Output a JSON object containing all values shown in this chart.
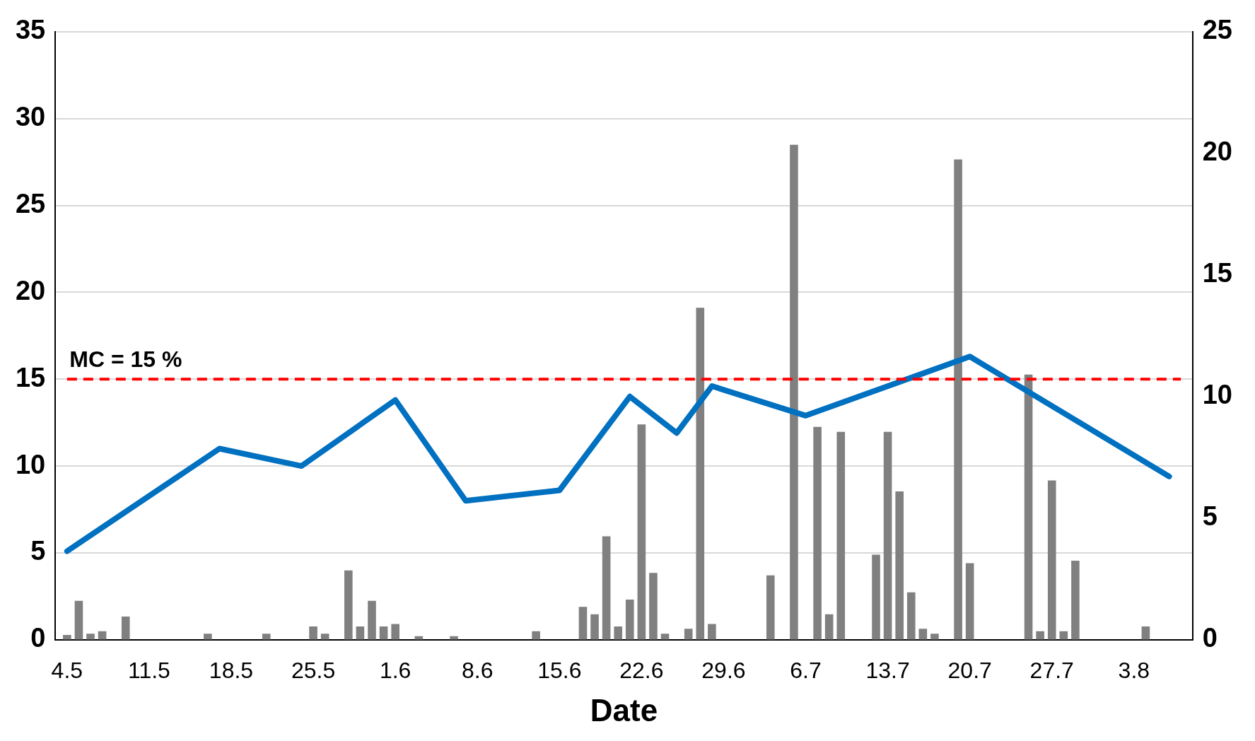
{
  "chart_data": {
    "type": "bar",
    "xlabel": "Date",
    "xlim": [
      "--05-03",
      "--08-08"
    ],
    "xticks": [
      {
        "value": "--05-04",
        "label": "4.5"
      },
      {
        "value": "--05-11",
        "label": "11.5"
      },
      {
        "value": "--05-18",
        "label": "18.5"
      },
      {
        "value": "--05-25",
        "label": "25.5"
      },
      {
        "value": "--06-01",
        "label": "1.6"
      },
      {
        "value": "--06-08",
        "label": "8.6"
      },
      {
        "value": "--06-15",
        "label": "15.6"
      },
      {
        "value": "--06-22",
        "label": "22.6"
      },
      {
        "value": "--06-29",
        "label": "29.6"
      },
      {
        "value": "--07-06",
        "label": "6.7"
      },
      {
        "value": "--07-13",
        "label": "13.7"
      },
      {
        "value": "--07-20",
        "label": "20.7"
      },
      {
        "value": "--07-27",
        "label": "27.7"
      },
      {
        "value": "--08-03",
        "label": "3.8"
      }
    ],
    "ylim": [
      0,
      35
    ],
    "yticks": [
      0,
      5,
      10,
      15,
      20,
      25,
      30,
      35
    ],
    "y2lim": [
      0,
      25
    ],
    "y2ticks": [
      0,
      5,
      10,
      15,
      20,
      25
    ],
    "grid": "y",
    "series": [
      {
        "axis": "y2",
        "color": "#808080",
        "x": [
          "--05-04",
          "--05-05",
          "--05-06",
          "--05-07",
          "--05-09",
          "--05-16",
          "--05-21",
          "--05-25",
          "--05-26",
          "--05-28",
          "--05-29",
          "--05-30",
          "--05-31",
          "--06-01",
          "--06-03",
          "--06-06",
          "--06-13",
          "--06-17",
          "--06-18",
          "--06-19",
          "--06-20",
          "--06-21",
          "--06-22",
          "--06-23",
          "--06-24",
          "--06-26",
          "--06-27",
          "--06-28",
          "--07-03",
          "--07-05",
          "--07-07",
          "--07-08",
          "--07-09",
          "--07-12",
          "--07-13",
          "--07-14",
          "--07-15",
          "--07-16",
          "--07-17",
          "--07-19",
          "--07-20",
          "--07-25",
          "--07-26",
          "--07-27",
          "--07-28",
          "--07-29",
          "--08-04"
        ],
        "values": [
          0.2,
          1.6,
          0.25,
          0.35,
          0.95,
          0.25,
          0.25,
          0.55,
          0.25,
          2.85,
          0.55,
          1.6,
          0.55,
          0.65,
          0.15,
          0.15,
          0.35,
          1.35,
          1.05,
          4.25,
          0.55,
          1.65,
          8.85,
          2.75,
          0.25,
          0.45,
          13.65,
          0.65,
          2.65,
          20.35,
          8.75,
          1.05,
          8.55,
          3.5,
          8.55,
          6.1,
          1.95,
          0.45,
          0.25,
          19.75,
          3.15,
          10.9,
          0.35,
          6.55,
          0.35,
          3.25,
          0.55
        ]
      },
      {
        "type": "line",
        "axis": "y",
        "color": "#0070c0",
        "x": [
          "--05-04",
          "--05-17",
          "--05-24",
          "--06-01",
          "--06-07",
          "--06-15",
          "--06-21",
          "--06-25",
          "--06-28",
          "--07-06",
          "--07-20",
          "--08-06"
        ],
        "values": [
          5.1,
          11.0,
          10.0,
          13.8,
          8.0,
          8.6,
          14.0,
          11.9,
          14.6,
          12.9,
          16.3,
          9.4
        ]
      }
    ],
    "ref_lines": [
      {
        "axis": "y",
        "value": 15,
        "label": "MC = 15 %",
        "color": "#ff0000",
        "line_style": "dashed"
      }
    ]
  }
}
